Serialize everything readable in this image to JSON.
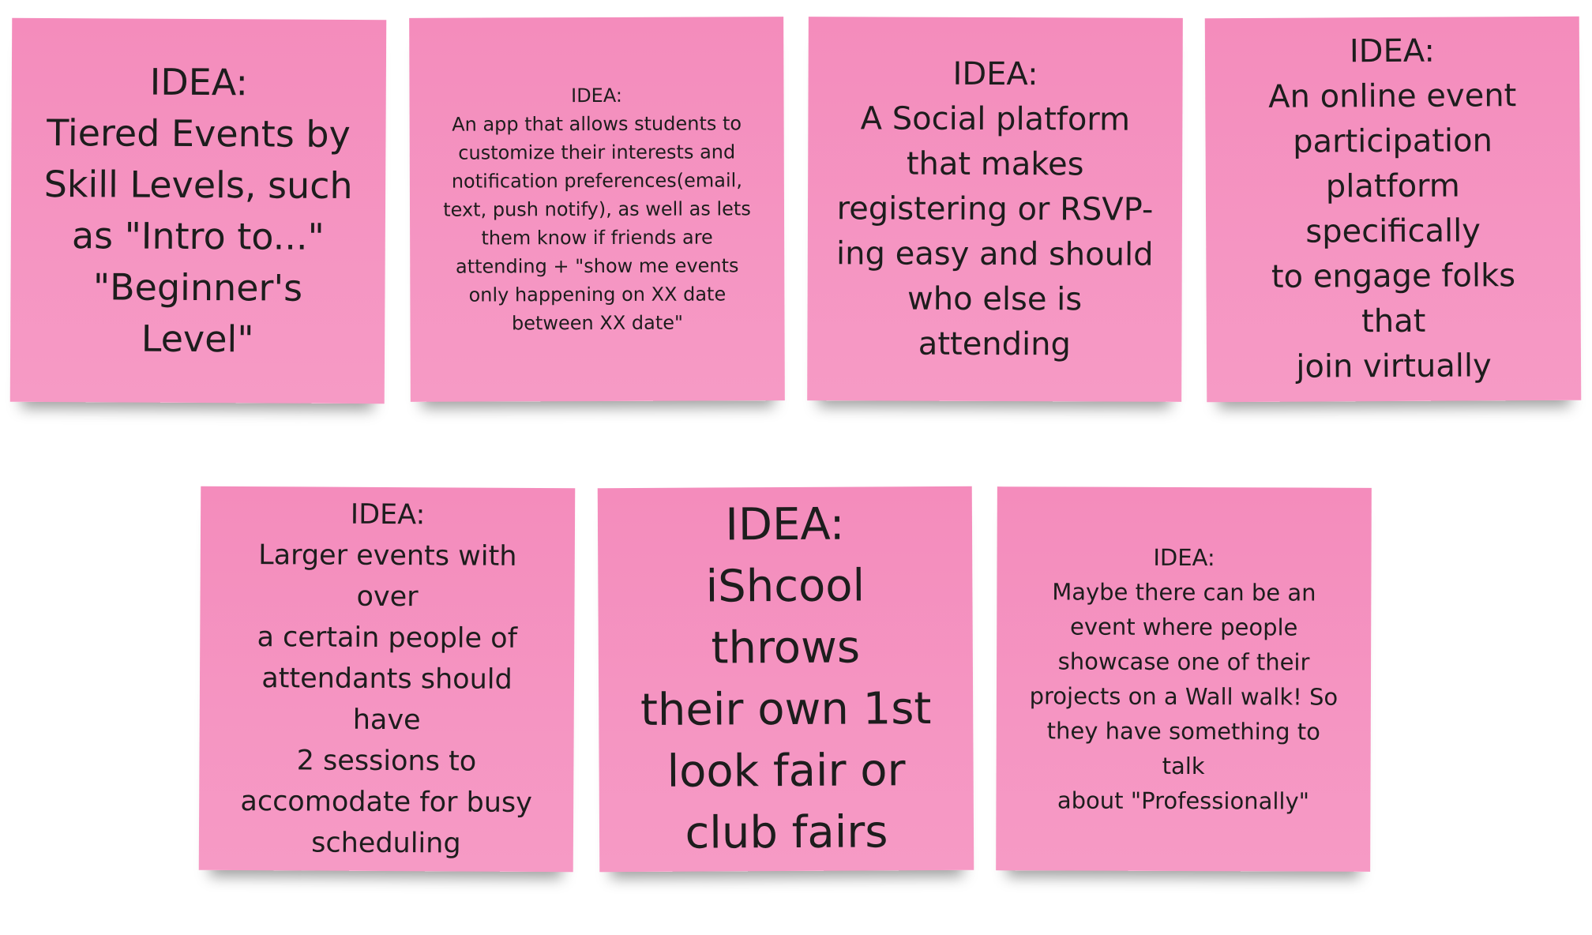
{
  "notes": [
    {
      "text": "IDEA:\nTiered Events by\nSkill Levels, such\nas \"Intro to...\"\n\"Beginner's Level\""
    },
    {
      "text": "IDEA:\nAn app that allows students to\ncustomize their interests and\nnotification preferences(email,\ntext, push notify), as well as lets\nthem know if friends are\nattending + \"show me events\nonly happening on XX date\nbetween XX date\""
    },
    {
      "text": "IDEA:\nA Social platform\nthat makes\nregistering or RSVP-\ning easy and should\nwho else is\nattending"
    },
    {
      "text": "IDEA:\nAn online event\nparticipation\nplatform specifically\nto engage folks that\njoin virtually"
    },
    {
      "text": "IDEA:\nLarger events with over\na certain people of\nattendants should have\n2 sessions to\naccomodate for busy\nscheduling"
    },
    {
      "text": "IDEA:\niShcool throws\ntheir own 1st\nlook fair or\nclub fairs"
    },
    {
      "text": "IDEA:\nMaybe there can be an\nevent where people\nshowcase one of their\nprojects on a Wall walk! So\nthey have something to talk\nabout \"Professionally\""
    }
  ],
  "colors": {
    "note_fill": "#f48cbc",
    "text": "#1d1d1d",
    "background": "#ffffff"
  }
}
